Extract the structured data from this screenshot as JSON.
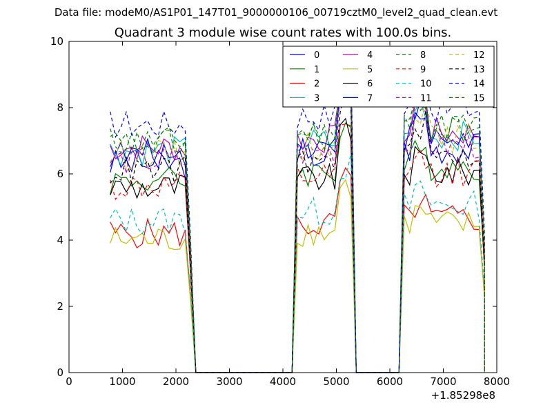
{
  "figure": {
    "suptitle": "Data file: modeM0/AS1P01_147T01_9000000106_00719cztM0_level2_quad_clean.evt"
  },
  "chart_data": {
    "type": "line",
    "title": "Quadrant 3 module wise count rates with 100.0s bins.",
    "xlabel": "",
    "ylabel": "",
    "x_offset_label": "+1.85298e8",
    "xlim": [
      0,
      8000
    ],
    "ylim": [
      0,
      10
    ],
    "xticks": [
      0,
      1000,
      2000,
      3000,
      4000,
      5000,
      6000,
      7000,
      8000
    ],
    "yticks": [
      0,
      2,
      4,
      6,
      8,
      10
    ],
    "legend_location": "top-right",
    "legend_columns": 4,
    "segments": [
      {
        "x_start": 771,
        "x_end": 2271,
        "plateau_end": 2171,
        "post_drop": 2371
      },
      {
        "x_start": 4271,
        "x_end": 5271,
        "plateau_end": 5271,
        "post_drop": 5371
      },
      {
        "x_start": 6271,
        "x_end": 7771,
        "plateau_end": 7671,
        "post_drop": 7771
      }
    ],
    "series": [
      {
        "name": "0",
        "color": "#0000ff",
        "dash": "solid",
        "level": 6.3
      },
      {
        "name": "1",
        "color": "#008000",
        "dash": "solid",
        "level": 5.8
      },
      {
        "name": "2",
        "color": "#ff0000",
        "dash": "solid",
        "level": 4.2
      },
      {
        "name": "3",
        "color": "#00bfbf",
        "dash": "solid",
        "level": 6.7
      },
      {
        "name": "4",
        "color": "#bf00bf",
        "dash": "solid",
        "level": 6.8
      },
      {
        "name": "5",
        "color": "#bfbf00",
        "dash": "solid",
        "level": 4.0
      },
      {
        "name": "6",
        "color": "#000000",
        "dash": "solid",
        "level": 5.6
      },
      {
        "name": "7",
        "color": "#0000ff",
        "dash": "solid",
        "level": 6.6
      },
      {
        "name": "8",
        "color": "#008000",
        "dash": "dashed",
        "level": 7.0
      },
      {
        "name": "9",
        "color": "#ff0000",
        "dash": "dashed",
        "level": 5.6
      },
      {
        "name": "10",
        "color": "#00bfbf",
        "dash": "dashed",
        "level": 4.6
      },
      {
        "name": "11",
        "color": "#bf00bf",
        "dash": "dashed",
        "level": 6.4
      },
      {
        "name": "12",
        "color": "#bfbf00",
        "dash": "dashed",
        "level": 6.6
      },
      {
        "name": "13",
        "color": "#000000",
        "dash": "dashed",
        "level": 6.1
      },
      {
        "name": "14",
        "color": "#0000ff",
        "dash": "dashed",
        "level": 7.5
      },
      {
        "name": "15",
        "color": "#008000",
        "dash": "dashed",
        "level": 6.9
      }
    ]
  }
}
